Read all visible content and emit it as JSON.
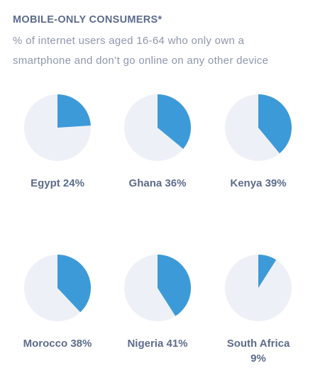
{
  "chart_data": {
    "type": "pie",
    "title": "MOBILE-ONLY CONSUMERS*",
    "subtitle": "% of internet users aged 16-64 who only own a smartphone and don’t go online on any other device",
    "categories": [
      "Egypt",
      "Ghana",
      "Kenya",
      "Morocco",
      "Nigeria",
      "South Africa"
    ],
    "values": [
      24,
      36,
      39,
      38,
      41,
      9
    ],
    "value_labels": [
      "24%",
      "36%",
      "39%",
      "38%",
      "41%",
      "9%"
    ],
    "color": "#3d9ad8",
    "background_color": "#eef0f7"
  }
}
